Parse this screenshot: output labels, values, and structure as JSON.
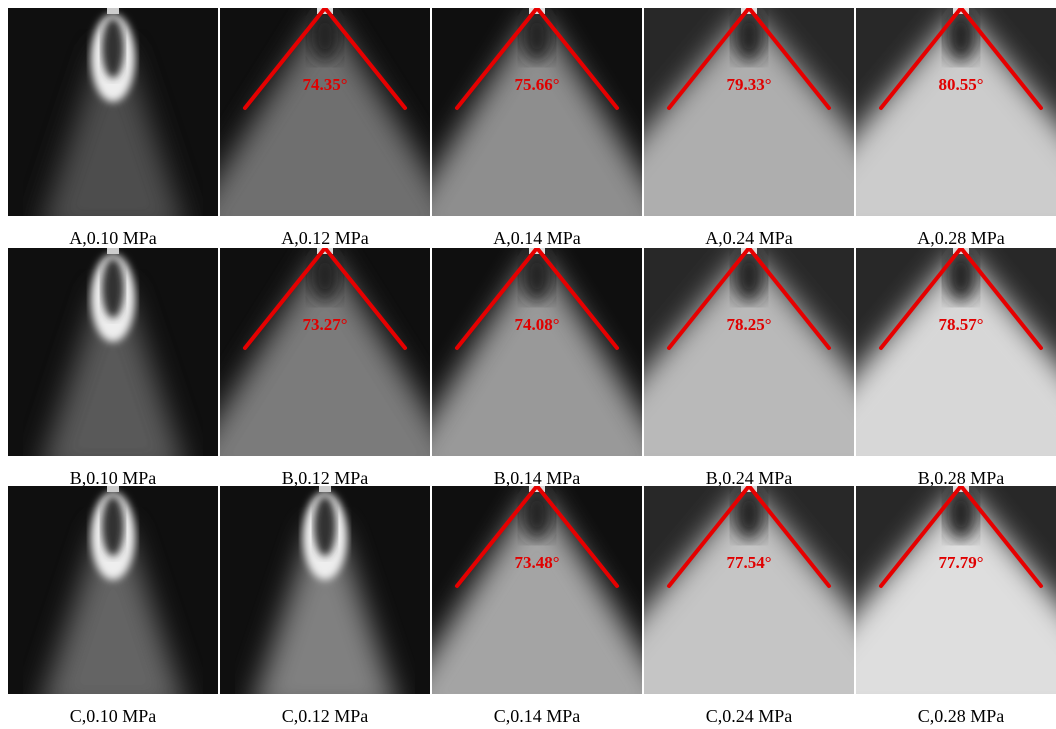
{
  "rows": [
    {
      "cells": [
        {
          "caption": "A,0.10 MPa"
        },
        {
          "caption": "A,0.12 MPa",
          "angle": "74.35°"
        },
        {
          "caption": "A,0.14 MPa",
          "angle": "75.66°"
        },
        {
          "caption": "A,0.24 MPa",
          "angle": "79.33°"
        },
        {
          "caption": "A,0.28 MPa",
          "angle": "80.55°"
        }
      ]
    },
    {
      "cells": [
        {
          "caption": "B,0.10 MPa"
        },
        {
          "caption": "B,0.12 MPa",
          "angle": "73.27°"
        },
        {
          "caption": "B,0.14 MPa",
          "angle": "74.08°"
        },
        {
          "caption": "B,0.24 MPa",
          "angle": "78.25°"
        },
        {
          "caption": "B,0.28 MPa",
          "angle": "78.57°"
        }
      ]
    },
    {
      "cells": [
        {
          "caption": "C,0.10 MPa"
        },
        {
          "caption": "C,0.12 MPa"
        },
        {
          "caption": "C,0.14 MPa",
          "angle": "73.48°"
        },
        {
          "caption": "C,0.24 MPa",
          "angle": "77.54°"
        },
        {
          "caption": "C,0.28 MPa",
          "angle": "77.79°"
        }
      ]
    }
  ]
}
